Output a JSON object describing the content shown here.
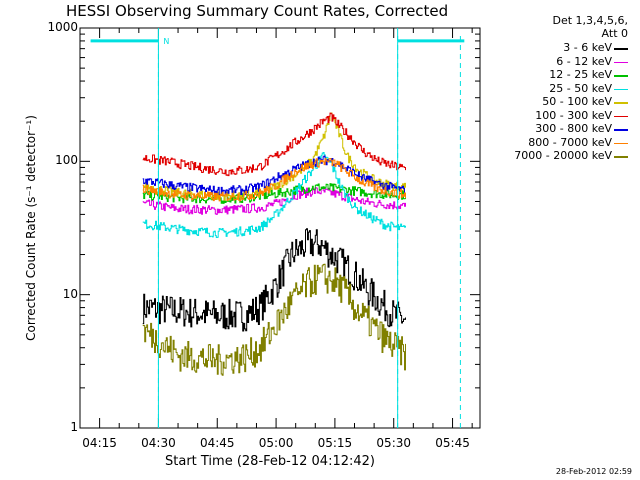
{
  "chart_data": {
    "type": "line",
    "title": "HESSI Observing Summary Count Rates, Corrected",
    "xlabel": "Start Time (28-Feb-12 04:12:42)",
    "ylabel": "Corrected Count Rate (s⁻¹ detector⁻¹)",
    "yscale": "log",
    "ylim": [
      1,
      1000
    ],
    "xlim": [
      "04:10",
      "05:52"
    ],
    "xticks": [
      "04:15",
      "04:30",
      "04:45",
      "05:00",
      "05:15",
      "05:30",
      "05:45"
    ],
    "yticks": [
      "1",
      "10",
      "100",
      "1000"
    ],
    "legend_header": [
      "Det 1,3,4,5,6,",
      "Att 0"
    ],
    "legend_position": "right",
    "footer": "28-Feb-2012 02:59",
    "flag_label": "N",
    "night_markers": [
      {
        "start": "04:12:42",
        "end": "04:30",
        "level": 800
      },
      {
        "start": "05:31",
        "end": "05:48",
        "level": 800
      }
    ],
    "dashed_lines": [
      "04:30",
      "05:31",
      "05:47"
    ],
    "data_start": "04:26",
    "data_end": "05:33",
    "series": [
      {
        "name": "3 - 6 keV",
        "color": "#000000",
        "points": [
          [
            "04:26",
            8
          ],
          [
            "04:35",
            7.5
          ],
          [
            "04:45",
            7
          ],
          [
            "04:52",
            7
          ],
          [
            "04:56",
            8
          ],
          [
            "05:00",
            12
          ],
          [
            "05:04",
            20
          ],
          [
            "05:08",
            24
          ],
          [
            "05:11",
            24
          ],
          [
            "05:14",
            20
          ],
          [
            "05:17",
            17
          ],
          [
            "05:20",
            14
          ],
          [
            "05:23",
            11
          ],
          [
            "05:26",
            9
          ],
          [
            "05:30",
            7
          ],
          [
            "05:33",
            6.5
          ]
        ]
      },
      {
        "name": "6 - 12 keV",
        "color": "#e000e0",
        "points": [
          [
            "04:26",
            48
          ],
          [
            "04:35",
            44
          ],
          [
            "04:45",
            43
          ],
          [
            "04:52",
            44
          ],
          [
            "04:56",
            45
          ],
          [
            "05:00",
            48
          ],
          [
            "05:05",
            56
          ],
          [
            "05:10",
            60
          ],
          [
            "05:14",
            58
          ],
          [
            "05:18",
            54
          ],
          [
            "05:22",
            50
          ],
          [
            "05:26",
            48
          ],
          [
            "05:30",
            47
          ],
          [
            "05:33",
            46
          ]
        ]
      },
      {
        "name": "12 - 25 keV",
        "color": "#00c000",
        "points": [
          [
            "04:26",
            56
          ],
          [
            "04:35",
            53
          ],
          [
            "04:45",
            52
          ],
          [
            "04:52",
            53
          ],
          [
            "04:56",
            55
          ],
          [
            "05:00",
            57
          ],
          [
            "05:05",
            61
          ],
          [
            "05:10",
            64
          ],
          [
            "05:14",
            63
          ],
          [
            "05:18",
            61
          ],
          [
            "05:22",
            59
          ],
          [
            "05:26",
            57
          ],
          [
            "05:30",
            56
          ],
          [
            "05:33",
            56
          ]
        ]
      },
      {
        "name": "25 - 50 keV",
        "color": "#00e0e0",
        "points": [
          [
            "04:26",
            34
          ],
          [
            "04:35",
            31
          ],
          [
            "04:45",
            29
          ],
          [
            "04:52",
            30
          ],
          [
            "04:56",
            32
          ],
          [
            "05:00",
            40
          ],
          [
            "05:05",
            60
          ],
          [
            "05:09",
            85
          ],
          [
            "05:12",
            110
          ],
          [
            "05:14",
            95
          ],
          [
            "05:17",
            60
          ],
          [
            "05:20",
            45
          ],
          [
            "05:24",
            38
          ],
          [
            "05:28",
            33
          ],
          [
            "05:33",
            31
          ]
        ]
      },
      {
        "name": "50 - 100 keV",
        "color": "#d0c000",
        "points": [
          [
            "04:26",
            65
          ],
          [
            "04:35",
            58
          ],
          [
            "04:45",
            55
          ],
          [
            "04:52",
            56
          ],
          [
            "04:56",
            58
          ],
          [
            "05:00",
            65
          ],
          [
            "05:05",
            80
          ],
          [
            "05:09",
            100
          ],
          [
            "05:12",
            150
          ],
          [
            "05:14",
            230
          ],
          [
            "05:16",
            160
          ],
          [
            "05:18",
            110
          ],
          [
            "05:21",
            85
          ],
          [
            "05:25",
            72
          ],
          [
            "05:29",
            66
          ],
          [
            "05:33",
            64
          ]
        ]
      },
      {
        "name": "100 - 300 keV",
        "color": "#e00000",
        "points": [
          [
            "04:26",
            106
          ],
          [
            "04:32",
            100
          ],
          [
            "04:40",
            90
          ],
          [
            "04:47",
            84
          ],
          [
            "04:52",
            86
          ],
          [
            "04:56",
            92
          ],
          [
            "05:00",
            110
          ],
          [
            "05:05",
            140
          ],
          [
            "05:09",
            170
          ],
          [
            "05:12",
            200
          ],
          [
            "05:14",
            215
          ],
          [
            "05:16",
            185
          ],
          [
            "05:19",
            150
          ],
          [
            "05:22",
            120
          ],
          [
            "05:26",
            100
          ],
          [
            "05:30",
            92
          ],
          [
            "05:33",
            88
          ]
        ]
      },
      {
        "name": "300 - 800 keV",
        "color": "#0000e0",
        "points": [
          [
            "04:26",
            72
          ],
          [
            "04:35",
            65
          ],
          [
            "04:45",
            60
          ],
          [
            "04:52",
            61
          ],
          [
            "04:56",
            65
          ],
          [
            "05:00",
            75
          ],
          [
            "05:05",
            88
          ],
          [
            "05:09",
            98
          ],
          [
            "05:12",
            102
          ],
          [
            "05:15",
            100
          ],
          [
            "05:18",
            88
          ],
          [
            "05:22",
            75
          ],
          [
            "05:26",
            68
          ],
          [
            "05:30",
            63
          ],
          [
            "05:33",
            60
          ]
        ]
      },
      {
        "name": "800 - 7000 keV",
        "color": "#ff8000",
        "points": [
          [
            "04:26",
            62
          ],
          [
            "04:35",
            56
          ],
          [
            "04:45",
            54
          ],
          [
            "04:52",
            55
          ],
          [
            "04:56",
            58
          ],
          [
            "05:00",
            66
          ],
          [
            "05:05",
            85
          ],
          [
            "05:09",
            95
          ],
          [
            "05:12",
            100
          ],
          [
            "05:15",
            97
          ],
          [
            "05:18",
            84
          ],
          [
            "05:22",
            70
          ],
          [
            "05:26",
            62
          ],
          [
            "05:30",
            58
          ],
          [
            "05:33",
            56
          ]
        ]
      },
      {
        "name": "7000 - 20000 keV",
        "color": "#808000",
        "points": [
          [
            "04:26",
            5.5
          ],
          [
            "04:30",
            4.5
          ],
          [
            "04:35",
            3.5
          ],
          [
            "04:45",
            3.2
          ],
          [
            "04:52",
            3.4
          ],
          [
            "04:56",
            4
          ],
          [
            "05:00",
            6
          ],
          [
            "05:04",
            9
          ],
          [
            "05:08",
            12
          ],
          [
            "05:11",
            13.5
          ],
          [
            "05:14",
            13
          ],
          [
            "05:17",
            11
          ],
          [
            "05:20",
            8
          ],
          [
            "05:24",
            6
          ],
          [
            "05:28",
            4.5
          ],
          [
            "05:33",
            3.5
          ]
        ]
      }
    ]
  }
}
